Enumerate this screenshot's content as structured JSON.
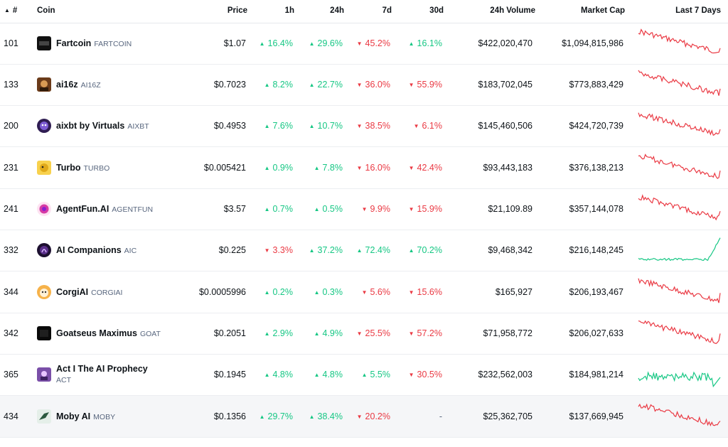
{
  "header": {
    "rank": "#",
    "coin": "Coin",
    "price": "Price",
    "h1": "1h",
    "h24": "24h",
    "d7": "7d",
    "d30": "30d",
    "volume": "24h Volume",
    "mcap": "Market Cap",
    "spark": "Last 7 Days"
  },
  "colors": {
    "up": "#16c784",
    "down": "#ea3943"
  },
  "rows": [
    {
      "rank": "101",
      "name": "Fartcoin",
      "symbol": "FARTCOIN",
      "price": "$1.07",
      "h1": "16.4%",
      "h1_dir": "up",
      "h24": "29.6%",
      "h24_dir": "up",
      "d7": "45.2%",
      "d7_dir": "down",
      "d30": "16.1%",
      "d30_dir": "up",
      "volume": "$422,020,470",
      "mcap": "$1,094,815,986",
      "trend": "down",
      "icon": "fartcoin-logo-icon"
    },
    {
      "rank": "133",
      "name": "ai16z",
      "symbol": "AI16Z",
      "price": "$0.7023",
      "h1": "8.2%",
      "h1_dir": "up",
      "h24": "22.7%",
      "h24_dir": "up",
      "d7": "36.0%",
      "d7_dir": "down",
      "d30": "55.9%",
      "d30_dir": "down",
      "volume": "$183,702,045",
      "mcap": "$773,883,429",
      "trend": "down",
      "icon": "ai16z-logo-icon"
    },
    {
      "rank": "200",
      "name": "aixbt by Virtuals",
      "symbol": "AIXBT",
      "price": "$0.4953",
      "h1": "7.6%",
      "h1_dir": "up",
      "h24": "10.7%",
      "h24_dir": "up",
      "d7": "38.5%",
      "d7_dir": "down",
      "d30": "6.1%",
      "d30_dir": "down",
      "volume": "$145,460,506",
      "mcap": "$424,720,739",
      "trend": "down",
      "icon": "aixbt-logo-icon"
    },
    {
      "rank": "231",
      "name": "Turbo",
      "symbol": "TURBO",
      "price": "$0.005421",
      "h1": "0.9%",
      "h1_dir": "up",
      "h24": "7.8%",
      "h24_dir": "up",
      "d7": "16.0%",
      "d7_dir": "down",
      "d30": "42.4%",
      "d30_dir": "down",
      "volume": "$93,443,183",
      "mcap": "$376,138,213",
      "trend": "down",
      "icon": "turbo-logo-icon"
    },
    {
      "rank": "241",
      "name": "AgentFun.AI",
      "symbol": "AGENTFUN",
      "price": "$3.57",
      "h1": "0.7%",
      "h1_dir": "up",
      "h24": "0.5%",
      "h24_dir": "up",
      "d7": "9.9%",
      "d7_dir": "down",
      "d30": "15.9%",
      "d30_dir": "down",
      "volume": "$21,109.89",
      "mcap": "$357,144,078",
      "trend": "down",
      "icon": "agentfun-logo-icon"
    },
    {
      "rank": "332",
      "name": "AI Companions",
      "symbol": "AIC",
      "price": "$0.225",
      "h1": "3.3%",
      "h1_dir": "down",
      "h24": "37.2%",
      "h24_dir": "up",
      "d7": "72.4%",
      "d7_dir": "up",
      "d30": "70.2%",
      "d30_dir": "up",
      "volume": "$9,468,342",
      "mcap": "$216,148,245",
      "trend": "up",
      "icon": "ai-companions-logo-icon"
    },
    {
      "rank": "344",
      "name": "CorgiAI",
      "symbol": "CORGIAI",
      "price": "$0.0005996",
      "h1": "0.2%",
      "h1_dir": "up",
      "h24": "0.3%",
      "h24_dir": "up",
      "d7": "5.6%",
      "d7_dir": "down",
      "d30": "15.6%",
      "d30_dir": "down",
      "volume": "$165,927",
      "mcap": "$206,193,467",
      "trend": "down",
      "icon": "corgiai-logo-icon"
    },
    {
      "rank": "342",
      "name": "Goatseus Maximus",
      "symbol": "GOAT",
      "price": "$0.2051",
      "h1": "2.9%",
      "h1_dir": "up",
      "h24": "4.9%",
      "h24_dir": "up",
      "d7": "25.5%",
      "d7_dir": "down",
      "d30": "57.2%",
      "d30_dir": "down",
      "volume": "$71,958,772",
      "mcap": "$206,027,633",
      "trend": "down",
      "icon": "goat-logo-icon"
    },
    {
      "rank": "365",
      "name": "Act I The AI Prophecy",
      "symbol": "ACT",
      "price": "$0.1945",
      "h1": "4.8%",
      "h1_dir": "up",
      "h24": "4.8%",
      "h24_dir": "up",
      "d7": "5.5%",
      "d7_dir": "up",
      "d30": "30.5%",
      "d30_dir": "down",
      "volume": "$232,562,003",
      "mcap": "$184,981,214",
      "trend": "up",
      "icon": "act-logo-icon"
    },
    {
      "rank": "434",
      "name": "Moby AI",
      "symbol": "MOBY",
      "price": "$0.1356",
      "h1": "29.7%",
      "h1_dir": "up",
      "h24": "38.4%",
      "h24_dir": "up",
      "d7": "20.2%",
      "d7_dir": "down",
      "d30": "-",
      "d30_dir": "none",
      "volume": "$25,362,705",
      "mcap": "$137,669,945",
      "trend": "down",
      "icon": "moby-logo-icon"
    }
  ]
}
